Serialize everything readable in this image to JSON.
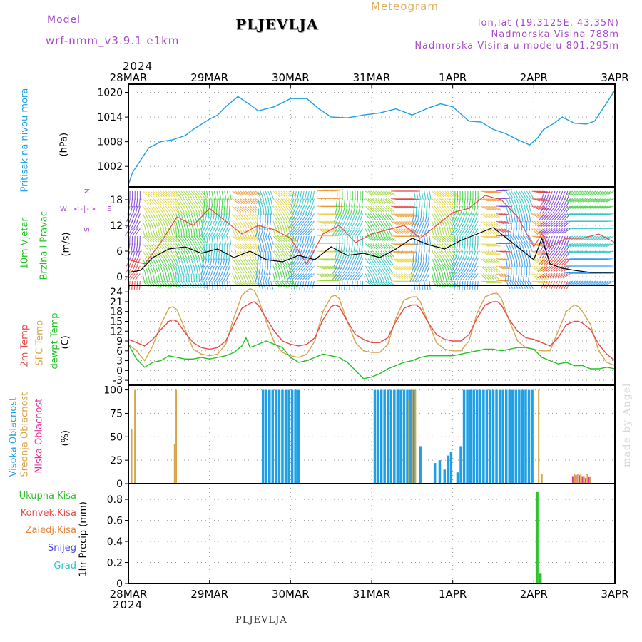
{
  "header": {
    "model_label": "Model",
    "model_name": "wrf-nmm_v3.9.1 e1km",
    "title": "PLJEVLJA",
    "meteogram_label": "Meteogram",
    "location": "lon,lat (19.3125E, 43.35N)",
    "elevation": "Nadmorska Visina 788m",
    "model_elevation": "Nadmorska Visina u modelu 801.295m",
    "year_top": "2024",
    "year_bottom": "2024",
    "footer_title": "PLJEVLJA",
    "watermark": "made by Angel"
  },
  "colors": {
    "pressure": "#1e9fe6",
    "temp2m": "#e84a4a",
    "sfc_temp": "#d7a64a",
    "dewpoint": "#1fc41f",
    "high_cloud": "#1e9fe6",
    "mid_cloud": "#d7a64a",
    "low_cloud": "#e0359b",
    "precip_total": "#2ec22e",
    "grid": "#999999",
    "header_purple": "#a64ac9",
    "header_orange": "#e0b060"
  },
  "chart_data": [
    {
      "type": "line",
      "name": "pressure",
      "ylabel_lines": [
        "Pritisak na nivou mora",
        "(hPa)"
      ],
      "ylim": [
        997,
        1022
      ],
      "yticks": [
        1002,
        1008,
        1014,
        1020
      ],
      "xticks": [
        "28MAR",
        "29MAR",
        "30MAR",
        "31MAR",
        "1APR",
        "2APR",
        "3APR"
      ],
      "grid": true,
      "series": [
        {
          "x": [
            0,
            0.05,
            0.15,
            0.25,
            0.4,
            0.55,
            0.7,
            0.8,
            1.0,
            1.1,
            1.2,
            1.35,
            1.5,
            1.6,
            1.8,
            2.0,
            2.2,
            2.35,
            2.5,
            2.7,
            2.9,
            3.1,
            3.3,
            3.5,
            3.7,
            3.85,
            4.0,
            4.2,
            4.35,
            4.5,
            4.65,
            4.8,
            4.95,
            5.05,
            5.12,
            5.25,
            5.35,
            5.5,
            5.65,
            5.75,
            5.85,
            6.0
          ],
          "y": [
            997.5,
            1000.5,
            1003.5,
            1006.5,
            1008.0,
            1008.5,
            1009.5,
            1011.0,
            1013.5,
            1014.5,
            1016.5,
            1019.0,
            1017.0,
            1015.5,
            1016.5,
            1018.5,
            1018.5,
            1016.0,
            1014.0,
            1013.8,
            1014.5,
            1015.0,
            1016.0,
            1014.5,
            1016.2,
            1017.2,
            1016.5,
            1013.0,
            1012.8,
            1011.0,
            1010.0,
            1008.5,
            1007.2,
            1009.0,
            1011.0,
            1012.5,
            1014.0,
            1012.5,
            1012.3,
            1013.0,
            1016.0,
            1020.5
          ]
        }
      ]
    },
    {
      "type": "line",
      "name": "wind",
      "ylabel_lines": [
        "10m Vjetar",
        "Brzina i Pravac",
        "(m/s)"
      ],
      "compass": [
        "N",
        "W",
        "E",
        "S"
      ],
      "ylim": [
        -2,
        21
      ],
      "yticks": [
        0,
        6,
        12,
        18
      ],
      "grid": true,
      "series": [
        {
          "name": "speed",
          "x": [
            0,
            0.15,
            0.3,
            0.5,
            0.7,
            0.9,
            1.1,
            1.3,
            1.5,
            1.7,
            1.9,
            2.1,
            2.3,
            2.5,
            2.7,
            2.9,
            3.1,
            3.3,
            3.5,
            3.7,
            3.9,
            4.1,
            4.3,
            4.5,
            4.7,
            4.9,
            5.0,
            5.1,
            5.2,
            5.35,
            5.5,
            5.7,
            5.9,
            6.0
          ],
          "y": [
            1.0,
            1.5,
            4.5,
            6.5,
            7.0,
            5.5,
            6.5,
            4.5,
            6.0,
            4.0,
            3.5,
            5.0,
            4.0,
            7.0,
            5.0,
            5.5,
            4.5,
            6.5,
            9.0,
            7.5,
            6.5,
            8.5,
            10.0,
            11.5,
            8.5,
            5.5,
            4.0,
            9.0,
            3.0,
            2.0,
            1.5,
            1.0,
            1.0,
            1.0
          ]
        },
        {
          "name": "gust",
          "x": [
            0,
            0.2,
            0.4,
            0.6,
            0.8,
            1.0,
            1.2,
            1.4,
            1.6,
            1.8,
            2.0,
            2.2,
            2.4,
            2.6,
            2.8,
            3.0,
            3.2,
            3.4,
            3.6,
            3.8,
            4.0,
            4.2,
            4.4,
            4.6,
            4.8,
            5.0,
            5.1,
            5.2,
            5.4,
            5.6,
            5.8,
            6.0
          ],
          "y": [
            4,
            3,
            8,
            14,
            12,
            16,
            13,
            10,
            12,
            11,
            9,
            3,
            10,
            12,
            8,
            10,
            11,
            12,
            9,
            12,
            15,
            16,
            19,
            18,
            14,
            7,
            10,
            7,
            9,
            9,
            10,
            8
          ]
        }
      ]
    },
    {
      "type": "line",
      "name": "temperature",
      "ylabel_lines": [
        "2m Temp",
        "SFC Temp",
        "dewpt Temp",
        "(C)"
      ],
      "ylim": [
        -4.5,
        26
      ],
      "yticks": [
        -3,
        0,
        3,
        6,
        9,
        12,
        15,
        18,
        21,
        24
      ],
      "grid": true,
      "series": [
        {
          "name": "2m Temp",
          "x": [
            0,
            0.1,
            0.2,
            0.3,
            0.4,
            0.5,
            0.55,
            0.6,
            0.7,
            0.8,
            0.9,
            1.0,
            1.1,
            1.2,
            1.3,
            1.4,
            1.5,
            1.55,
            1.6,
            1.7,
            1.8,
            1.9,
            2.0,
            2.1,
            2.2,
            2.3,
            2.4,
            2.5,
            2.55,
            2.6,
            2.7,
            2.8,
            2.9,
            3.0,
            3.1,
            3.2,
            3.3,
            3.4,
            3.5,
            3.55,
            3.6,
            3.7,
            3.8,
            3.9,
            4.0,
            4.1,
            4.2,
            4.3,
            4.4,
            4.5,
            4.55,
            4.6,
            4.7,
            4.8,
            4.9,
            5.0,
            5.1,
            5.2,
            5.3,
            5.4,
            5.5,
            5.55,
            5.6,
            5.7,
            5.8,
            5.9,
            6.0
          ],
          "y": [
            9.5,
            8.5,
            7.5,
            9.5,
            12.5,
            15.0,
            15.5,
            15.0,
            11.5,
            8.5,
            7.0,
            6.5,
            7.0,
            9.0,
            14.0,
            19.0,
            20.5,
            21.0,
            20.0,
            16.0,
            12.0,
            9.0,
            8.0,
            7.5,
            8.0,
            10.0,
            15.5,
            19.5,
            20.0,
            19.5,
            15.0,
            11.0,
            9.5,
            8.5,
            8.5,
            10.0,
            15.0,
            19.0,
            20.0,
            20.0,
            19.0,
            14.5,
            11.0,
            9.5,
            9.0,
            9.0,
            11.0,
            16.0,
            20.0,
            21.0,
            21.0,
            20.0,
            15.5,
            12.0,
            10.0,
            9.5,
            8.5,
            7.5,
            10.0,
            14.0,
            15.0,
            15.0,
            14.5,
            12.5,
            8.0,
            5.0,
            3.0
          ]
        },
        {
          "name": "SFC Temp",
          "x": [
            0,
            0.1,
            0.2,
            0.3,
            0.4,
            0.5,
            0.55,
            0.6,
            0.7,
            0.8,
            0.9,
            1.0,
            1.1,
            1.2,
            1.3,
            1.4,
            1.5,
            1.55,
            1.6,
            1.7,
            1.8,
            1.9,
            2.0,
            2.1,
            2.2,
            2.3,
            2.4,
            2.5,
            2.55,
            2.6,
            2.7,
            2.8,
            2.9,
            3.0,
            3.1,
            3.2,
            3.3,
            3.4,
            3.5,
            3.55,
            3.6,
            3.7,
            3.8,
            3.9,
            4.0,
            4.1,
            4.2,
            4.3,
            4.4,
            4.5,
            4.55,
            4.6,
            4.7,
            4.8,
            4.9,
            5.0,
            5.1,
            5.2,
            5.3,
            5.4,
            5.5,
            5.55,
            5.6,
            5.7,
            5.8,
            5.9,
            6.0
          ],
          "y": [
            8.0,
            6.0,
            3.0,
            7.5,
            14.0,
            19.0,
            19.5,
            18.5,
            12.5,
            6.5,
            5.0,
            4.5,
            5.0,
            8.0,
            16.0,
            23.0,
            25.0,
            24.5,
            22.0,
            15.0,
            8.5,
            5.5,
            4.5,
            4.0,
            5.0,
            9.0,
            18.0,
            22.5,
            23.0,
            22.0,
            15.0,
            8.5,
            6.0,
            5.5,
            5.5,
            8.0,
            16.0,
            21.5,
            22.5,
            22.5,
            21.0,
            14.5,
            8.5,
            6.5,
            6.0,
            6.0,
            9.0,
            17.5,
            22.5,
            23.5,
            23.5,
            22.0,
            15.0,
            9.0,
            7.0,
            6.5,
            6.0,
            6.0,
            12.0,
            18.0,
            20.0,
            19.5,
            18.0,
            14.0,
            6.0,
            2.5,
            1.5
          ]
        },
        {
          "name": "dewpt Temp",
          "x": [
            0,
            0.1,
            0.2,
            0.3,
            0.4,
            0.5,
            0.6,
            0.7,
            0.8,
            0.9,
            1.0,
            1.1,
            1.2,
            1.3,
            1.4,
            1.45,
            1.5,
            1.6,
            1.7,
            1.8,
            1.9,
            2.0,
            2.1,
            2.2,
            2.3,
            2.4,
            2.5,
            2.6,
            2.7,
            2.8,
            2.9,
            3.0,
            3.1,
            3.2,
            3.3,
            3.4,
            3.5,
            3.6,
            3.7,
            3.8,
            3.9,
            4.0,
            4.1,
            4.2,
            4.3,
            4.4,
            4.5,
            4.6,
            4.7,
            4.8,
            4.9,
            5.0,
            5.1,
            5.2,
            5.3,
            5.4,
            5.5,
            5.6,
            5.7,
            5.8,
            5.9,
            6.0
          ],
          "y": [
            8.0,
            3.5,
            1.0,
            2.5,
            3.0,
            4.5,
            4.0,
            3.5,
            3.5,
            4.0,
            3.5,
            4.0,
            4.5,
            5.5,
            7.5,
            10.0,
            7.0,
            8.0,
            9.0,
            8.0,
            7.0,
            4.0,
            2.5,
            3.0,
            4.0,
            5.0,
            4.5,
            4.0,
            2.5,
            0.0,
            -2.5,
            -2.0,
            -1.0,
            0.5,
            1.5,
            2.5,
            3.0,
            4.0,
            4.5,
            4.5,
            4.5,
            4.5,
            5.0,
            5.5,
            6.0,
            6.5,
            6.5,
            6.0,
            6.5,
            7.0,
            7.0,
            6.5,
            4.0,
            3.0,
            2.0,
            2.5,
            1.5,
            1.5,
            0.5,
            0.5,
            1.0,
            0.5
          ]
        }
      ]
    },
    {
      "type": "bar",
      "name": "cloud_cover",
      "ylabel_lines": [
        "Visoka Oblacnost",
        "Srednja Oblacnost",
        "Niska Oblacnost",
        "(%)"
      ],
      "ylim": [
        0,
        105
      ],
      "yticks": [
        0,
        25,
        50,
        75,
        100
      ],
      "grid": true,
      "series": [
        {
          "name": "Visoka Oblacnost",
          "x": [
            1.66,
            1.7,
            1.74,
            1.78,
            1.82,
            1.86,
            1.9,
            1.94,
            1.98,
            2.02,
            2.06,
            2.1,
            3.04,
            3.08,
            3.12,
            3.16,
            3.2,
            3.24,
            3.28,
            3.32,
            3.36,
            3.4,
            3.44,
            3.48,
            3.52,
            3.6,
            3.78,
            3.84,
            3.9,
            3.94,
            3.98,
            4.06,
            4.1,
            4.14,
            4.18,
            4.22,
            4.26,
            4.3,
            4.34,
            4.38,
            4.42,
            4.46,
            4.5,
            4.54,
            4.58,
            4.62,
            4.66,
            4.7,
            4.74,
            4.78,
            4.82,
            4.86,
            4.9,
            4.94,
            4.98
          ],
          "values": [
            100,
            100,
            100,
            100,
            100,
            100,
            100,
            100,
            100,
            100,
            100,
            100,
            100,
            100,
            100,
            100,
            100,
            100,
            100,
            100,
            100,
            100,
            100,
            100,
            100,
            40,
            22,
            25,
            15,
            30,
            34,
            12,
            40,
            100,
            100,
            100,
            100,
            100,
            100,
            100,
            100,
            100,
            100,
            100,
            100,
            100,
            100,
            100,
            100,
            100,
            100,
            100,
            100,
            100,
            100
          ]
        },
        {
          "name": "Srednja Oblacnost",
          "x": [
            0.04,
            0.08,
            0.57,
            0.59,
            3.46,
            3.5,
            3.54,
            5.06,
            5.1,
            5.5,
            5.54,
            5.58,
            5.62,
            5.66,
            5.7
          ],
          "values": [
            58,
            100,
            42,
            100,
            90,
            100,
            100,
            100,
            10,
            10,
            10,
            10,
            8,
            10,
            8
          ]
        },
        {
          "name": "Niska Oblacnost",
          "x": [
            5.48,
            5.52,
            5.56,
            5.6,
            5.64,
            5.68
          ],
          "values": [
            8,
            9,
            9,
            8,
            6,
            7
          ]
        }
      ]
    },
    {
      "type": "bar",
      "name": "precipitation",
      "ylabel_lines": [
        "1hr Precip (mm)"
      ],
      "legend": [
        "Ukupna Kisa",
        "Konvek.Kisa",
        "Zaledj.Kisa",
        "Snijeg",
        "Grad"
      ],
      "legend_colors": [
        "#2ec22e",
        "#e84a4a",
        "#e8853a",
        "#4a4ae0",
        "#2ec2c2"
      ],
      "ylim": [
        0,
        0.95
      ],
      "yticks": [
        0,
        0.2,
        0.4,
        0.6,
        0.8
      ],
      "grid": true,
      "series": [
        {
          "name": "Ukupna Kisa",
          "x": [
            5.04,
            5.08
          ],
          "values": [
            0.87,
            0.1
          ]
        }
      ]
    }
  ]
}
